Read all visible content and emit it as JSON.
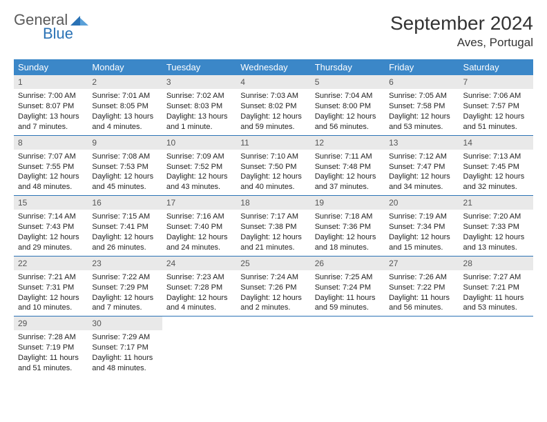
{
  "brand": {
    "word1": "General",
    "word2": "Blue",
    "mark_color": "#2a72b5",
    "word1_color": "#5a5a5a"
  },
  "header": {
    "title": "September 2024",
    "location": "Aves, Portugal"
  },
  "colors": {
    "header_bg": "#3b87c8",
    "header_fg": "#ffffff",
    "daynum_bg": "#e9e9e9",
    "row_border": "#2a72b5"
  },
  "weekdays": [
    "Sunday",
    "Monday",
    "Tuesday",
    "Wednesday",
    "Thursday",
    "Friday",
    "Saturday"
  ],
  "weeks": [
    [
      {
        "n": "1",
        "sunrise": "7:00 AM",
        "sunset": "8:07 PM",
        "daylight": "13 hours and 7 minutes."
      },
      {
        "n": "2",
        "sunrise": "7:01 AM",
        "sunset": "8:05 PM",
        "daylight": "13 hours and 4 minutes."
      },
      {
        "n": "3",
        "sunrise": "7:02 AM",
        "sunset": "8:03 PM",
        "daylight": "13 hours and 1 minute."
      },
      {
        "n": "4",
        "sunrise": "7:03 AM",
        "sunset": "8:02 PM",
        "daylight": "12 hours and 59 minutes."
      },
      {
        "n": "5",
        "sunrise": "7:04 AM",
        "sunset": "8:00 PM",
        "daylight": "12 hours and 56 minutes."
      },
      {
        "n": "6",
        "sunrise": "7:05 AM",
        "sunset": "7:58 PM",
        "daylight": "12 hours and 53 minutes."
      },
      {
        "n": "7",
        "sunrise": "7:06 AM",
        "sunset": "7:57 PM",
        "daylight": "12 hours and 51 minutes."
      }
    ],
    [
      {
        "n": "8",
        "sunrise": "7:07 AM",
        "sunset": "7:55 PM",
        "daylight": "12 hours and 48 minutes."
      },
      {
        "n": "9",
        "sunrise": "7:08 AM",
        "sunset": "7:53 PM",
        "daylight": "12 hours and 45 minutes."
      },
      {
        "n": "10",
        "sunrise": "7:09 AM",
        "sunset": "7:52 PM",
        "daylight": "12 hours and 43 minutes."
      },
      {
        "n": "11",
        "sunrise": "7:10 AM",
        "sunset": "7:50 PM",
        "daylight": "12 hours and 40 minutes."
      },
      {
        "n": "12",
        "sunrise": "7:11 AM",
        "sunset": "7:48 PM",
        "daylight": "12 hours and 37 minutes."
      },
      {
        "n": "13",
        "sunrise": "7:12 AM",
        "sunset": "7:47 PM",
        "daylight": "12 hours and 34 minutes."
      },
      {
        "n": "14",
        "sunrise": "7:13 AM",
        "sunset": "7:45 PM",
        "daylight": "12 hours and 32 minutes."
      }
    ],
    [
      {
        "n": "15",
        "sunrise": "7:14 AM",
        "sunset": "7:43 PM",
        "daylight": "12 hours and 29 minutes."
      },
      {
        "n": "16",
        "sunrise": "7:15 AM",
        "sunset": "7:41 PM",
        "daylight": "12 hours and 26 minutes."
      },
      {
        "n": "17",
        "sunrise": "7:16 AM",
        "sunset": "7:40 PM",
        "daylight": "12 hours and 24 minutes."
      },
      {
        "n": "18",
        "sunrise": "7:17 AM",
        "sunset": "7:38 PM",
        "daylight": "12 hours and 21 minutes."
      },
      {
        "n": "19",
        "sunrise": "7:18 AM",
        "sunset": "7:36 PM",
        "daylight": "12 hours and 18 minutes."
      },
      {
        "n": "20",
        "sunrise": "7:19 AM",
        "sunset": "7:34 PM",
        "daylight": "12 hours and 15 minutes."
      },
      {
        "n": "21",
        "sunrise": "7:20 AM",
        "sunset": "7:33 PM",
        "daylight": "12 hours and 13 minutes."
      }
    ],
    [
      {
        "n": "22",
        "sunrise": "7:21 AM",
        "sunset": "7:31 PM",
        "daylight": "12 hours and 10 minutes."
      },
      {
        "n": "23",
        "sunrise": "7:22 AM",
        "sunset": "7:29 PM",
        "daylight": "12 hours and 7 minutes."
      },
      {
        "n": "24",
        "sunrise": "7:23 AM",
        "sunset": "7:28 PM",
        "daylight": "12 hours and 4 minutes."
      },
      {
        "n": "25",
        "sunrise": "7:24 AM",
        "sunset": "7:26 PM",
        "daylight": "12 hours and 2 minutes."
      },
      {
        "n": "26",
        "sunrise": "7:25 AM",
        "sunset": "7:24 PM",
        "daylight": "11 hours and 59 minutes."
      },
      {
        "n": "27",
        "sunrise": "7:26 AM",
        "sunset": "7:22 PM",
        "daylight": "11 hours and 56 minutes."
      },
      {
        "n": "28",
        "sunrise": "7:27 AM",
        "sunset": "7:21 PM",
        "daylight": "11 hours and 53 minutes."
      }
    ],
    [
      {
        "n": "29",
        "sunrise": "7:28 AM",
        "sunset": "7:19 PM",
        "daylight": "11 hours and 51 minutes."
      },
      {
        "n": "30",
        "sunrise": "7:29 AM",
        "sunset": "7:17 PM",
        "daylight": "11 hours and 48 minutes."
      },
      null,
      null,
      null,
      null,
      null
    ]
  ],
  "labels": {
    "sunrise": "Sunrise:",
    "sunset": "Sunset:",
    "daylight": "Daylight:"
  }
}
